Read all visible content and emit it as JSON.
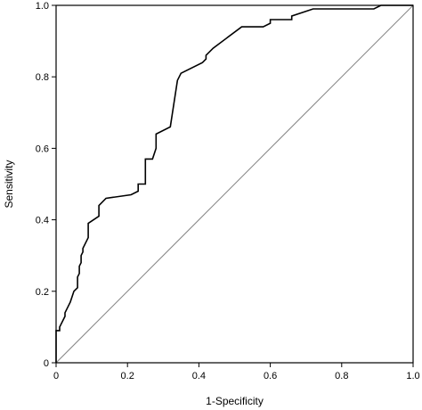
{
  "chart_data": {
    "type": "line",
    "title": "",
    "xlabel": "1-Specificity",
    "ylabel": "Sensitivity",
    "xlim": [
      0,
      1
    ],
    "ylim": [
      0,
      1
    ],
    "xticks": [
      "0",
      "0.2",
      "0.4",
      "0.6",
      "0.8",
      "1.0"
    ],
    "yticks": [
      "0",
      "0.2",
      "0.4",
      "0.6",
      "0.8",
      "1.0"
    ],
    "grid": false,
    "legend": "none",
    "series": [
      {
        "color": "#000000",
        "x": [
          0.0,
          0.0,
          0.01,
          0.01,
          0.025,
          0.025,
          0.04,
          0.05,
          0.06,
          0.06,
          0.065,
          0.065,
          0.07,
          0.07,
          0.075,
          0.075,
          0.09,
          0.09,
          0.12,
          0.12,
          0.14,
          0.21,
          0.23,
          0.23,
          0.25,
          0.25,
          0.27,
          0.28,
          0.28,
          0.32,
          0.34,
          0.35,
          0.41,
          0.42,
          0.42,
          0.44,
          0.52,
          0.58,
          0.6,
          0.6,
          0.66,
          0.66,
          0.72,
          0.89,
          0.91,
          1.0
        ],
        "y": [
          0.0,
          0.09,
          0.09,
          0.1,
          0.13,
          0.14,
          0.17,
          0.2,
          0.21,
          0.24,
          0.25,
          0.27,
          0.28,
          0.3,
          0.31,
          0.32,
          0.35,
          0.39,
          0.41,
          0.44,
          0.46,
          0.47,
          0.48,
          0.5,
          0.5,
          0.57,
          0.57,
          0.6,
          0.64,
          0.66,
          0.79,
          0.81,
          0.84,
          0.85,
          0.86,
          0.88,
          0.94,
          0.94,
          0.95,
          0.96,
          0.96,
          0.97,
          0.99,
          0.99,
          1.0,
          1.0
        ]
      },
      {
        "color": "#888888",
        "x": [
          0,
          1
        ],
        "y": [
          0,
          1
        ]
      }
    ]
  }
}
